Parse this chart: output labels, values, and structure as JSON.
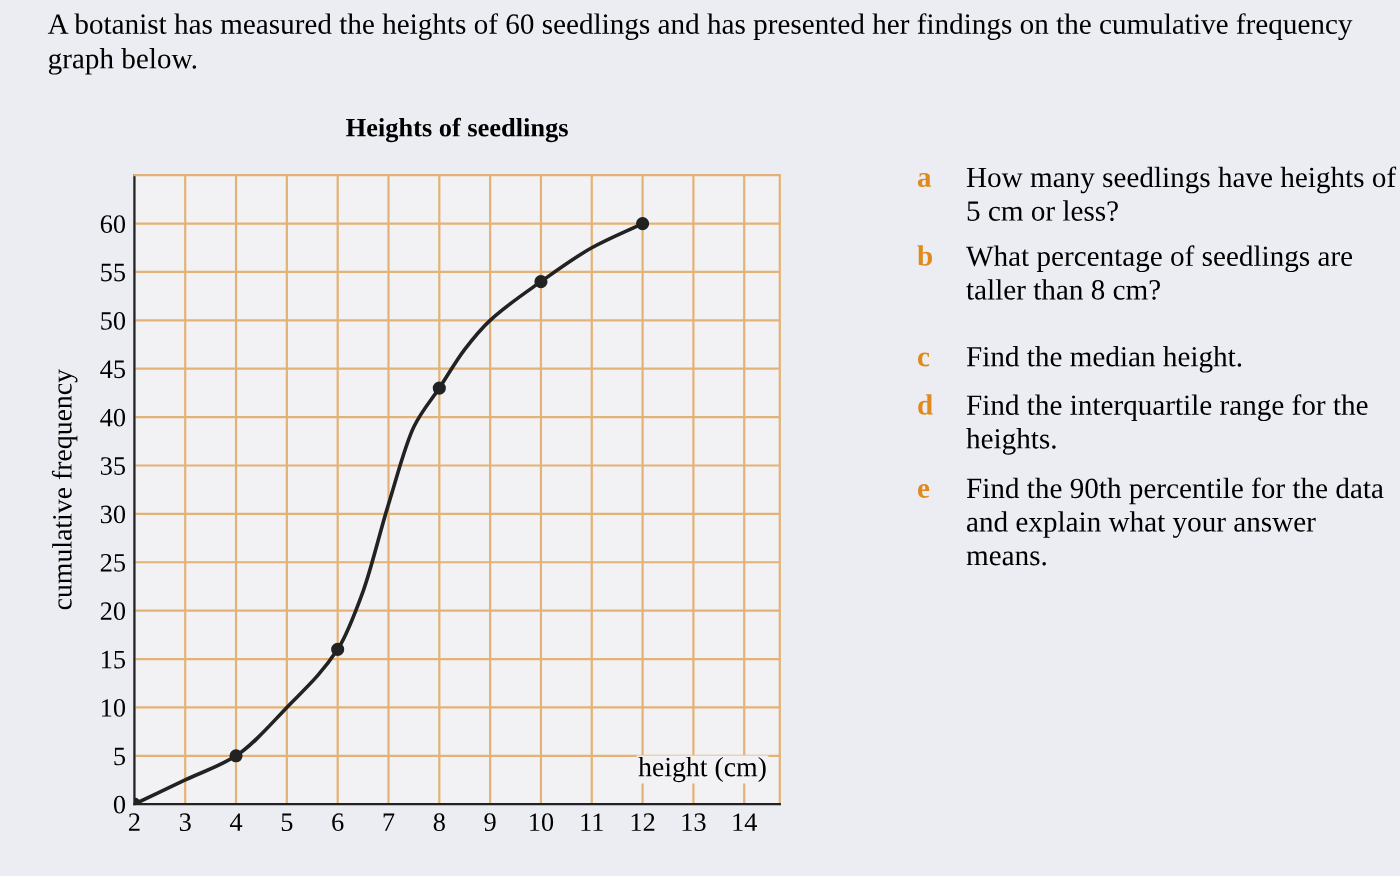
{
  "chart_data": {
    "type": "line",
    "title": "Heights of seedlings",
    "xlabel": "height (cm)",
    "ylabel": "cumulative frequency",
    "annotations": [
      "A botanist has measured the heights of 60 seedlings and has presented her findings on the cumulative frequency graph below.",
      "a",
      "How many seedlings have heights of 5 cm or less?",
      "b",
      "What percentage of seedlings are taller than 8 cm?",
      "c",
      "Find the median height.",
      "d",
      "Find the interquartile range for the heights.",
      "e",
      "Find the 90th percentile for the data and explain what your answer means."
    ],
    "series": [
      {
        "color": "#222222",
        "marker": "none",
        "x": [
          2,
          3,
          4,
          5,
          6,
          6.5,
          7,
          7.5,
          8,
          8.5,
          9,
          10,
          11,
          12
        ],
        "values": [
          0,
          2.5,
          5,
          10,
          16,
          22,
          31,
          39,
          43,
          47,
          50,
          54,
          57.5,
          60
        ]
      },
      {
        "type": "scatter",
        "color": "#222222",
        "marker": "circle",
        "x": [
          2,
          4,
          6,
          8,
          10,
          12
        ],
        "values": [
          0,
          5,
          16,
          43,
          54,
          60
        ]
      }
    ],
    "xlim": [
      2,
      14.7
    ],
    "ylim": [
      0,
      65
    ],
    "xticks": [
      2,
      3,
      4,
      5,
      6,
      7,
      8,
      9,
      10,
      11,
      12,
      13,
      14
    ],
    "yticks": [
      0,
      5,
      10,
      15,
      20,
      25,
      30,
      35,
      40,
      45,
      50,
      55,
      60
    ],
    "grid": true,
    "legend": false
  }
}
